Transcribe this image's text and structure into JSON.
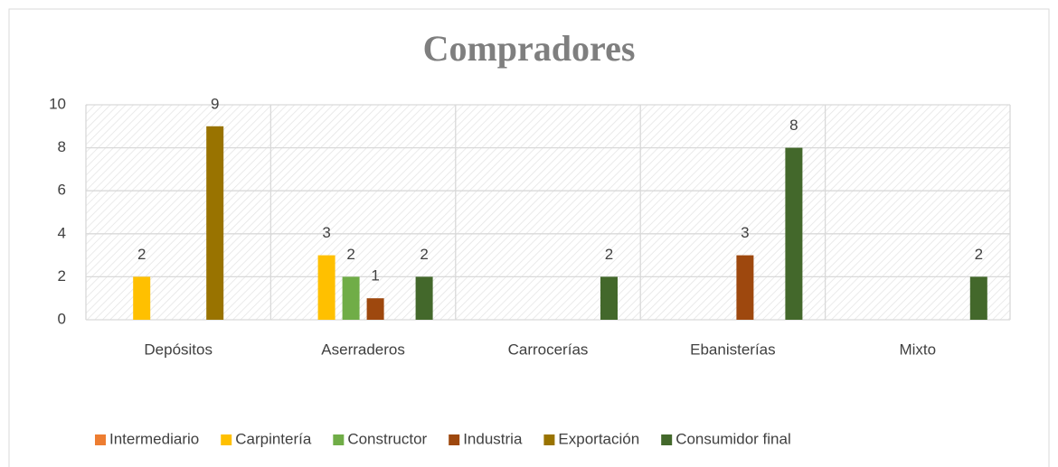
{
  "chart_data": {
    "type": "bar",
    "title": "Compradores",
    "categories": [
      "Depósitos",
      "Aserraderos",
      "Carrocerías",
      "Ebanisterías",
      "Mixto"
    ],
    "series": [
      {
        "name": "Intermediario",
        "color": "#ed7d31",
        "values": [
          null,
          null,
          null,
          null,
          null
        ]
      },
      {
        "name": "Carpintería",
        "color": "#ffc000",
        "values": [
          2,
          3,
          null,
          null,
          null
        ]
      },
      {
        "name": "Constructor",
        "color": "#70ad47",
        "values": [
          null,
          2,
          null,
          null,
          null
        ]
      },
      {
        "name": "Industria",
        "color": "#9e480e",
        "values": [
          null,
          1,
          null,
          3,
          null
        ]
      },
      {
        "name": "Exportación",
        "color": "#997300",
        "values": [
          9,
          null,
          null,
          null,
          null
        ]
      },
      {
        "name": "Consumidor final",
        "color": "#43682b",
        "values": [
          null,
          2,
          2,
          8,
          2
        ]
      }
    ],
    "ylim": [
      0,
      10
    ],
    "yticks": [
      0,
      2,
      4,
      6,
      8,
      10
    ],
    "grid": true,
    "legend": "bottom"
  }
}
